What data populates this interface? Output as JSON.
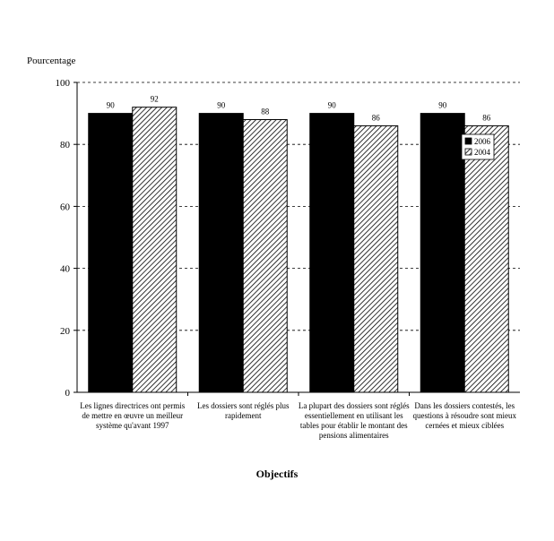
{
  "chart_data": {
    "type": "bar",
    "title": "",
    "xlabel": "Objectifs",
    "ylabel": "Pourcentage",
    "ylim": [
      0,
      100
    ],
    "yticks": [
      0,
      20,
      40,
      60,
      80,
      100
    ],
    "grid": true,
    "legend_position": "top-right",
    "categories": [
      "Les lignes directrices ont permis de mettre en œuvre un meilleur système qu'avant 1997",
      "Les dossiers sont réglés plus rapidement",
      "La plupart des dossiers sont réglés essentiellement en utilisant les tables pour établir le montant des pensions alimentaires",
      "Dans les dossiers contestés, les questions à résoudre sont mieux cernées et mieux ciblées"
    ],
    "series": [
      {
        "name": "2006",
        "values": [
          90,
          90,
          90,
          90
        ],
        "color": "#000000",
        "pattern": "solid"
      },
      {
        "name": "2004",
        "values": [
          92,
          88,
          86,
          86
        ],
        "color": "#000000",
        "pattern": "diagonal-hatch"
      }
    ]
  }
}
